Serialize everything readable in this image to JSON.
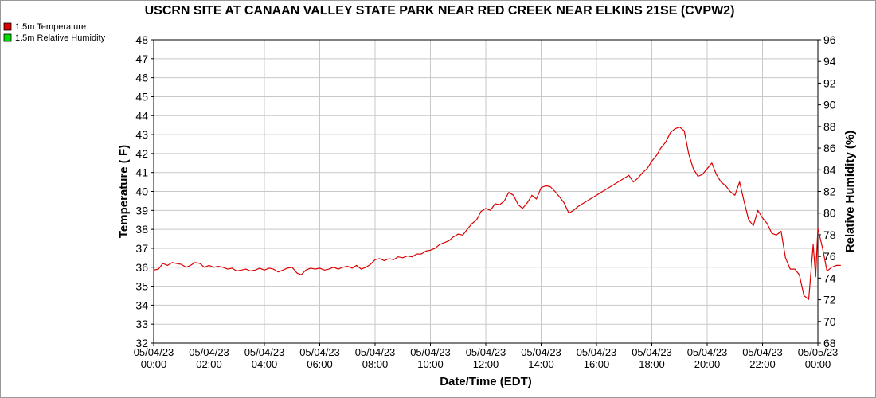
{
  "chart_data": {
    "type": "line",
    "title": "USCRN SITE AT CANAAN VALLEY STATE PARK NEAR RED CREEK NEAR ELKINS 21SE (CVPW2)",
    "xlabel": "Date/Time (EDT)",
    "ylabel": "Temperature ( F)",
    "y2label": "Relative Humidity (%)",
    "xlim": [
      0,
      24
    ],
    "ylim": [
      32,
      48
    ],
    "y2lim": [
      68,
      96
    ],
    "grid": true,
    "legend_position": "top-left",
    "x_ticks": [
      {
        "value": 0,
        "date": "05/04/23",
        "time": "00:00"
      },
      {
        "value": 2,
        "date": "05/04/23",
        "time": "02:00"
      },
      {
        "value": 4,
        "date": "05/04/23",
        "time": "04:00"
      },
      {
        "value": 6,
        "date": "05/04/23",
        "time": "06:00"
      },
      {
        "value": 8,
        "date": "05/04/23",
        "time": "08:00"
      },
      {
        "value": 10,
        "date": "05/04/23",
        "time": "10:00"
      },
      {
        "value": 12,
        "date": "05/04/23",
        "time": "12:00"
      },
      {
        "value": 14,
        "date": "05/04/23",
        "time": "14:00"
      },
      {
        "value": 16,
        "date": "05/04/23",
        "time": "16:00"
      },
      {
        "value": 18,
        "date": "05/04/23",
        "time": "18:00"
      },
      {
        "value": 20,
        "date": "05/04/23",
        "time": "20:00"
      },
      {
        "value": 22,
        "date": "05/04/23",
        "time": "22:00"
      },
      {
        "value": 24,
        "date": "05/05/23",
        "time": "00:00"
      }
    ],
    "y_ticks": [
      32,
      33,
      34,
      35,
      36,
      37,
      38,
      39,
      40,
      41,
      42,
      43,
      44,
      45,
      46,
      47,
      48
    ],
    "y2_ticks": [
      68,
      70,
      72,
      74,
      76,
      78,
      80,
      82,
      84,
      86,
      88,
      90,
      92,
      94,
      96
    ],
    "series": [
      {
        "name": "1.5m Temperature",
        "color": "#dd0000",
        "axis": "left",
        "points": [
          [
            0,
            35.85
          ],
          [
            0.17,
            35.9
          ],
          [
            0.33,
            36.2
          ],
          [
            0.5,
            36.1
          ],
          [
            0.67,
            36.25
          ],
          [
            0.83,
            36.2
          ],
          [
            1,
            36.15
          ],
          [
            1.17,
            36.0
          ],
          [
            1.33,
            36.1
          ],
          [
            1.5,
            36.25
          ],
          [
            1.67,
            36.2
          ],
          [
            1.83,
            36.0
          ],
          [
            2,
            36.1
          ],
          [
            2.17,
            36.0
          ],
          [
            2.33,
            36.05
          ],
          [
            2.5,
            36.0
          ],
          [
            2.67,
            35.9
          ],
          [
            2.83,
            35.95
          ],
          [
            3,
            35.8
          ],
          [
            3.17,
            35.85
          ],
          [
            3.33,
            35.9
          ],
          [
            3.5,
            35.8
          ],
          [
            3.67,
            35.85
          ],
          [
            3.83,
            35.95
          ],
          [
            4,
            35.85
          ],
          [
            4.17,
            35.95
          ],
          [
            4.33,
            35.9
          ],
          [
            4.5,
            35.75
          ],
          [
            4.67,
            35.85
          ],
          [
            4.83,
            35.95
          ],
          [
            5,
            36.0
          ],
          [
            5.17,
            35.7
          ],
          [
            5.33,
            35.6
          ],
          [
            5.5,
            35.85
          ],
          [
            5.67,
            35.95
          ],
          [
            5.83,
            35.9
          ],
          [
            6,
            35.95
          ],
          [
            6.17,
            35.85
          ],
          [
            6.33,
            35.9
          ],
          [
            6.5,
            36.0
          ],
          [
            6.67,
            35.9
          ],
          [
            6.83,
            36.0
          ],
          [
            7,
            36.05
          ],
          [
            7.17,
            35.95
          ],
          [
            7.33,
            36.1
          ],
          [
            7.5,
            35.9
          ],
          [
            7.67,
            36.0
          ],
          [
            7.83,
            36.15
          ],
          [
            8,
            36.4
          ],
          [
            8.17,
            36.45
          ],
          [
            8.33,
            36.35
          ],
          [
            8.5,
            36.45
          ],
          [
            8.67,
            36.4
          ],
          [
            8.83,
            36.55
          ],
          [
            9,
            36.5
          ],
          [
            9.17,
            36.6
          ],
          [
            9.33,
            36.55
          ],
          [
            9.5,
            36.7
          ],
          [
            9.67,
            36.7
          ],
          [
            9.83,
            36.85
          ],
          [
            10,
            36.9
          ],
          [
            10.17,
            37.0
          ],
          [
            10.33,
            37.2
          ],
          [
            10.5,
            37.3
          ],
          [
            10.67,
            37.4
          ],
          [
            10.83,
            37.6
          ],
          [
            11,
            37.75
          ],
          [
            11.17,
            37.7
          ],
          [
            11.33,
            38.0
          ],
          [
            11.5,
            38.3
          ],
          [
            11.67,
            38.5
          ],
          [
            11.83,
            38.95
          ],
          [
            12,
            39.1
          ],
          [
            12.17,
            39.0
          ],
          [
            12.33,
            39.35
          ],
          [
            12.5,
            39.3
          ],
          [
            12.67,
            39.5
          ],
          [
            12.83,
            39.95
          ],
          [
            13,
            39.8
          ],
          [
            13.17,
            39.3
          ],
          [
            13.33,
            39.1
          ],
          [
            13.5,
            39.4
          ],
          [
            13.67,
            39.8
          ],
          [
            13.83,
            39.6
          ],
          [
            14,
            40.2
          ],
          [
            14.17,
            40.3
          ],
          [
            14.33,
            40.25
          ],
          [
            14.5,
            40.0
          ],
          [
            14.67,
            39.7
          ],
          [
            14.83,
            39.4
          ],
          [
            15,
            38.85
          ],
          [
            15.17,
            39.0
          ],
          [
            15.33,
            39.2
          ],
          [
            17.17,
            40.85
          ],
          [
            17.33,
            40.5
          ],
          [
            17.5,
            40.7
          ],
          [
            17.67,
            41.0
          ],
          [
            17.83,
            41.2
          ],
          [
            18,
            41.6
          ],
          [
            18.17,
            41.9
          ],
          [
            18.33,
            42.3
          ],
          [
            18.5,
            42.6
          ],
          [
            18.67,
            43.1
          ],
          [
            18.83,
            43.3
          ],
          [
            19,
            43.4
          ],
          [
            19.17,
            43.2
          ],
          [
            19.33,
            42.0
          ],
          [
            19.5,
            41.2
          ],
          [
            19.67,
            40.8
          ],
          [
            19.83,
            40.9
          ],
          [
            20,
            41.2
          ],
          [
            20.17,
            41.5
          ],
          [
            20.33,
            40.9
          ],
          [
            20.5,
            40.5
          ],
          [
            20.67,
            40.3
          ],
          [
            20.83,
            40.0
          ],
          [
            21,
            39.8
          ],
          [
            21.17,
            40.5
          ],
          [
            21.33,
            39.5
          ],
          [
            21.5,
            38.5
          ],
          [
            21.67,
            38.2
          ],
          [
            21.83,
            39.0
          ],
          [
            22,
            38.6
          ],
          [
            22.17,
            38.3
          ],
          [
            22.33,
            37.8
          ],
          [
            22.5,
            37.7
          ],
          [
            22.67,
            37.9
          ],
          [
            22.83,
            36.5
          ],
          [
            23,
            35.9
          ],
          [
            23.17,
            35.9
          ],
          [
            23.33,
            35.6
          ],
          [
            23.5,
            34.5
          ],
          [
            23.67,
            34.3
          ],
          [
            23.83,
            37.2
          ],
          [
            23.92,
            35.5
          ],
          [
            24.0,
            38.05
          ],
          [
            24.17,
            37.0
          ],
          [
            24.33,
            35.8
          ],
          [
            24.5,
            36.0
          ],
          [
            24.67,
            36.1
          ],
          [
            24.83,
            36.1
          ]
        ]
      },
      {
        "name": "1.5m Relative Humidity",
        "color": "#00dd00",
        "axis": "right",
        "points": []
      }
    ]
  }
}
